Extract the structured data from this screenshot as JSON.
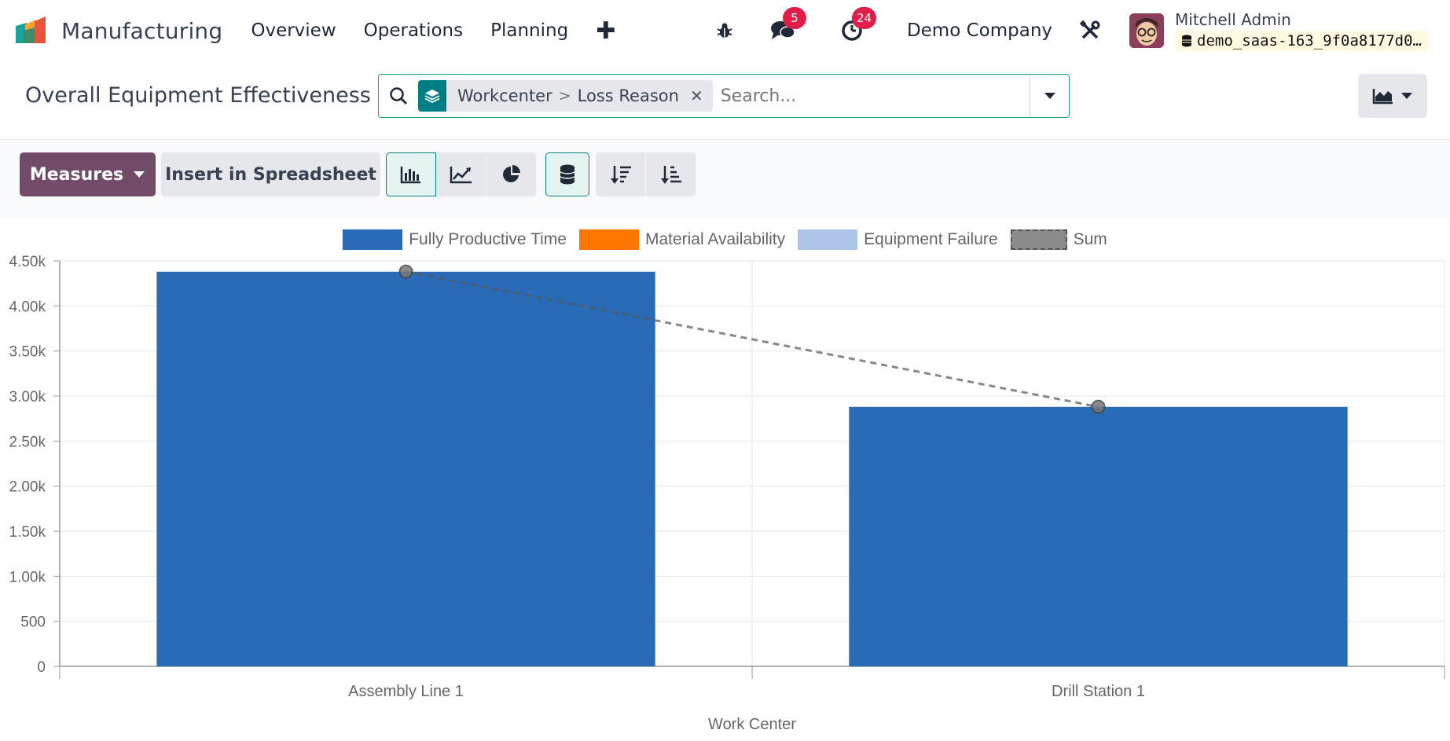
{
  "app": {
    "name": "Manufacturing",
    "menus": [
      "Overview",
      "Operations",
      "Planning"
    ]
  },
  "systray": {
    "messages_count": "5",
    "activities_count": "24",
    "company": "Demo Company",
    "user_name": "Mitchell Admin",
    "db_name": "demo_saas-163_9f0a8177d0…"
  },
  "control": {
    "page_title": "Overall Equipment Effectiveness",
    "facet_group_a": "Workcenter",
    "facet_sep": ">",
    "facet_group_b": "Loss Reason",
    "search_placeholder": "Search..."
  },
  "toolbar": {
    "measures_label": "Measures",
    "spreadsheet_label": "Insert in Spreadsheet"
  },
  "colors": {
    "primary": "#714b67",
    "accent": "#017e84",
    "bar_blue": "#2a6bb8",
    "orange": "#ff7600",
    "light_blue": "#aec3e8",
    "sum_gray": "#8c8c8c"
  },
  "chart_data": {
    "type": "bar",
    "categories": [
      "Assembly Line 1",
      "Drill Station 1"
    ],
    "series": [
      {
        "name": "Fully Productive Time",
        "values": [
          4380,
          2880
        ],
        "color": "#2a6bb8"
      },
      {
        "name": "Material Availability",
        "values": [
          0,
          0
        ],
        "color": "#ff7600"
      },
      {
        "name": "Equipment Failure",
        "values": [
          0,
          0
        ],
        "color": "#aec3e8"
      },
      {
        "name": "Sum",
        "values": [
          4380,
          2880
        ],
        "color": "#8c8c8c",
        "type": "line"
      }
    ],
    "xlabel": "Work Center",
    "ylabel": "",
    "ylim": [
      0,
      4500
    ],
    "yticks": [
      0,
      500,
      1000,
      1500,
      2000,
      2500,
      3000,
      3500,
      4000,
      4500
    ],
    "ytick_labels": [
      "0",
      "500",
      "1.00k",
      "1.50k",
      "2.00k",
      "2.50k",
      "3.00k",
      "3.50k",
      "4.00k",
      "4.50k"
    ],
    "stacked": true,
    "grid": true,
    "legend": "top-center"
  }
}
